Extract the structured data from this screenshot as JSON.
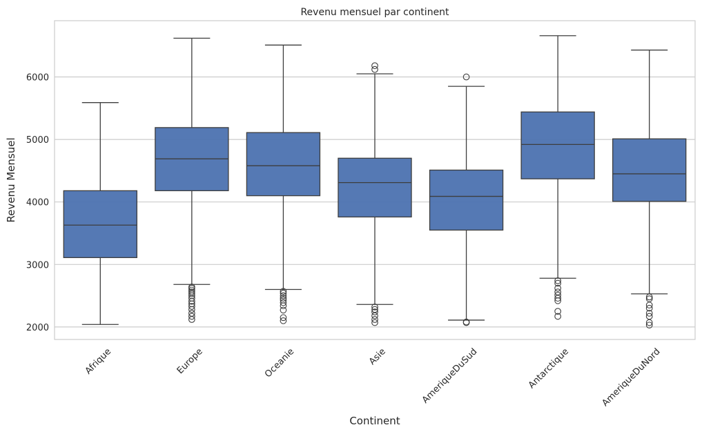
{
  "chart_data": {
    "type": "boxplot",
    "title": "Revenu mensuel par continent",
    "xlabel": "Continent",
    "ylabel": "Revenu Mensuel",
    "ylim": [
      1800,
      6900
    ],
    "yticks": [
      2000,
      3000,
      4000,
      5000,
      6000
    ],
    "grid": true,
    "box_color": "#4c72b0",
    "categories": [
      "Afrique",
      "Europe",
      "Oceanie",
      "Asie",
      "AmeriqueDuSud",
      "Antarctique",
      "AmeriqueDuNord"
    ],
    "boxes": [
      {
        "category": "Afrique",
        "whisker_low": 2040,
        "q1": 3110,
        "median": 3630,
        "q3": 4180,
        "whisker_high": 5590,
        "outliers": []
      },
      {
        "category": "Europe",
        "whisker_low": 2680,
        "q1": 4180,
        "median": 4690,
        "q3": 5190,
        "whisker_high": 6620,
        "outliers": [
          2120,
          2170,
          2220,
          2280,
          2330,
          2370,
          2410,
          2460,
          2500,
          2530,
          2560,
          2590,
          2620,
          2640
        ]
      },
      {
        "category": "Oceanie",
        "whisker_low": 2600,
        "q1": 4100,
        "median": 4580,
        "q3": 5110,
        "whisker_high": 6510,
        "outliers": [
          2100,
          2150,
          2270,
          2340,
          2390,
          2430,
          2460,
          2500,
          2540,
          2570
        ]
      },
      {
        "category": "Asie",
        "whisker_low": 2360,
        "q1": 3760,
        "median": 4310,
        "q3": 4700,
        "whisker_high": 6050,
        "outliers": [
          2070,
          2120,
          2180,
          2240,
          2280,
          2320,
          6120,
          6180
        ]
      },
      {
        "category": "AmeriqueDuSud",
        "whisker_low": 2110,
        "q1": 3550,
        "median": 4090,
        "q3": 4510,
        "whisker_high": 5850,
        "outliers": [
          2070,
          2080,
          6000
        ]
      },
      {
        "category": "Antarctique",
        "whisker_low": 2780,
        "q1": 4370,
        "median": 4920,
        "q3": 5440,
        "whisker_high": 6660,
        "outliers": [
          2170,
          2250,
          2420,
          2460,
          2510,
          2560,
          2620,
          2700,
          2740
        ]
      },
      {
        "category": "AmeriqueDuNord",
        "whisker_low": 2530,
        "q1": 4010,
        "median": 4450,
        "q3": 5010,
        "whisker_high": 6430,
        "outliers": [
          2030,
          2070,
          2170,
          2220,
          2300,
          2350,
          2450,
          2480
        ]
      }
    ]
  }
}
